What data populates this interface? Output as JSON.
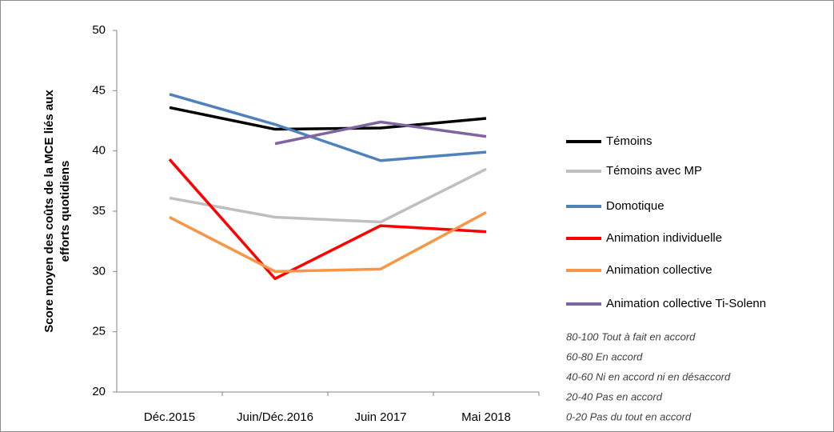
{
  "chart_data": {
    "type": "line",
    "ylabel": [
      "Score moyen des coûts de la MCE liés aux",
      "efforts quotidiens"
    ],
    "categories": [
      "Déc.2015",
      "Juin/Déc.2016",
      "Juin 2017",
      "Mai 2018"
    ],
    "ylim": [
      20,
      50
    ],
    "yticks": [
      20,
      25,
      30,
      35,
      40,
      45,
      50
    ],
    "grid": false,
    "legend": "right",
    "series": [
      {
        "name": "Témoins",
        "color": "#000000",
        "values": [
          43.6,
          41.8,
          41.9,
          42.7
        ]
      },
      {
        "name": "Témoins avec MP",
        "color": "#bfbfbf",
        "values": [
          36.1,
          34.5,
          34.1,
          38.5
        ]
      },
      {
        "name": "Domotique",
        "color": "#4f81bd",
        "values": [
          44.7,
          42.2,
          39.2,
          39.9
        ]
      },
      {
        "name": "Animation individuelle",
        "color": "#ff0000",
        "values": [
          39.3,
          29.4,
          33.8,
          33.3
        ]
      },
      {
        "name": "Animation collective",
        "color": "#f79646",
        "values": [
          34.5,
          30.0,
          30.2,
          34.9
        ]
      },
      {
        "name": "Animation collective Ti-Solenn",
        "color": "#8064a2",
        "values": [
          null,
          40.6,
          42.4,
          41.2
        ]
      }
    ],
    "annotations": [
      "80-100 Tout à fait en accord",
      "60-80 En accord",
      "40-60 Ni en accord ni en désaccord",
      "20-40 Pas en accord",
      "0-20 Pas du tout en accord"
    ]
  }
}
